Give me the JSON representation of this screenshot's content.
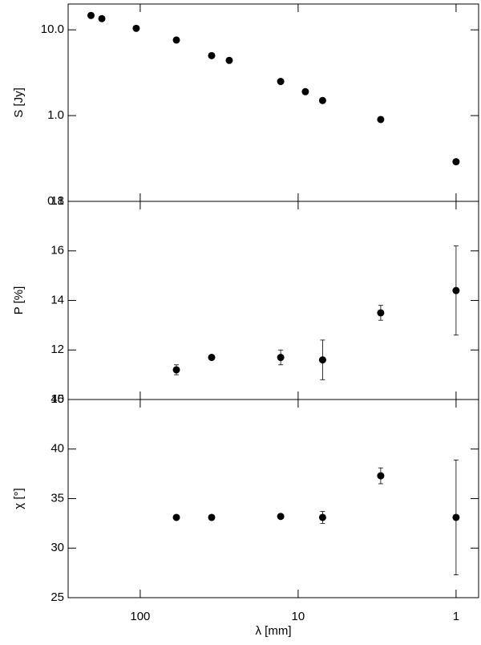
{
  "chart_data": [
    {
      "type": "scatter",
      "ylabel": "S [Jy]",
      "log_x": true,
      "log_y": true,
      "color": "#000000",
      "x": [
        205,
        175,
        106,
        59,
        35.3,
        27.3,
        12.9,
        9.0,
        7.0,
        3.0,
        1.0
      ],
      "values": [
        14.7,
        13.5,
        10.4,
        7.6,
        5.0,
        4.4,
        2.5,
        1.9,
        1.5,
        0.9,
        0.29
      ],
      "errors": [
        0.3,
        0.3,
        0.2,
        0.15,
        0.1,
        0.1,
        0.05,
        0.04,
        0.03,
        0.02,
        0.02
      ],
      "xlim": [
        286,
        0.72
      ],
      "ylim": [
        0.1,
        20
      ],
      "yticks": [
        0.1,
        {
          "value": 1,
          "label": "1.0"
        },
        {
          "value": 10,
          "label": "10.0"
        }
      ]
    },
    {
      "type": "scatter",
      "ylabel": "P [%]",
      "log_x": true,
      "log_y": false,
      "color": "#000000",
      "x": [
        59,
        35.3,
        12.9,
        7.0,
        3.0,
        1.0
      ],
      "values": [
        11.2,
        11.7,
        11.7,
        11.6,
        13.5,
        14.4
      ],
      "errors": [
        0.2,
        0.1,
        0.3,
        0.8,
        0.3,
        1.8
      ],
      "xlim": [
        286,
        0.72
      ],
      "ylim": [
        10,
        18
      ],
      "yticks": [
        10,
        12,
        14,
        16,
        18
      ]
    },
    {
      "type": "scatter",
      "ylabel": "χ [°]",
      "xlabel": "λ [mm]",
      "log_x": true,
      "log_y": false,
      "color": "#000000",
      "x": [
        59,
        35.3,
        12.9,
        7.0,
        3.0,
        1.0
      ],
      "values": [
        33.1,
        33.1,
        33.2,
        33.1,
        37.3,
        33.1
      ],
      "errors": [
        0.2,
        0.2,
        0.2,
        0.6,
        0.8,
        5.8
      ],
      "xlim": [
        286,
        0.72
      ],
      "ylim": [
        25,
        45
      ],
      "yticks": [
        25,
        30,
        35,
        40,
        45
      ],
      "xticks": [
        100,
        10,
        1
      ]
    }
  ]
}
